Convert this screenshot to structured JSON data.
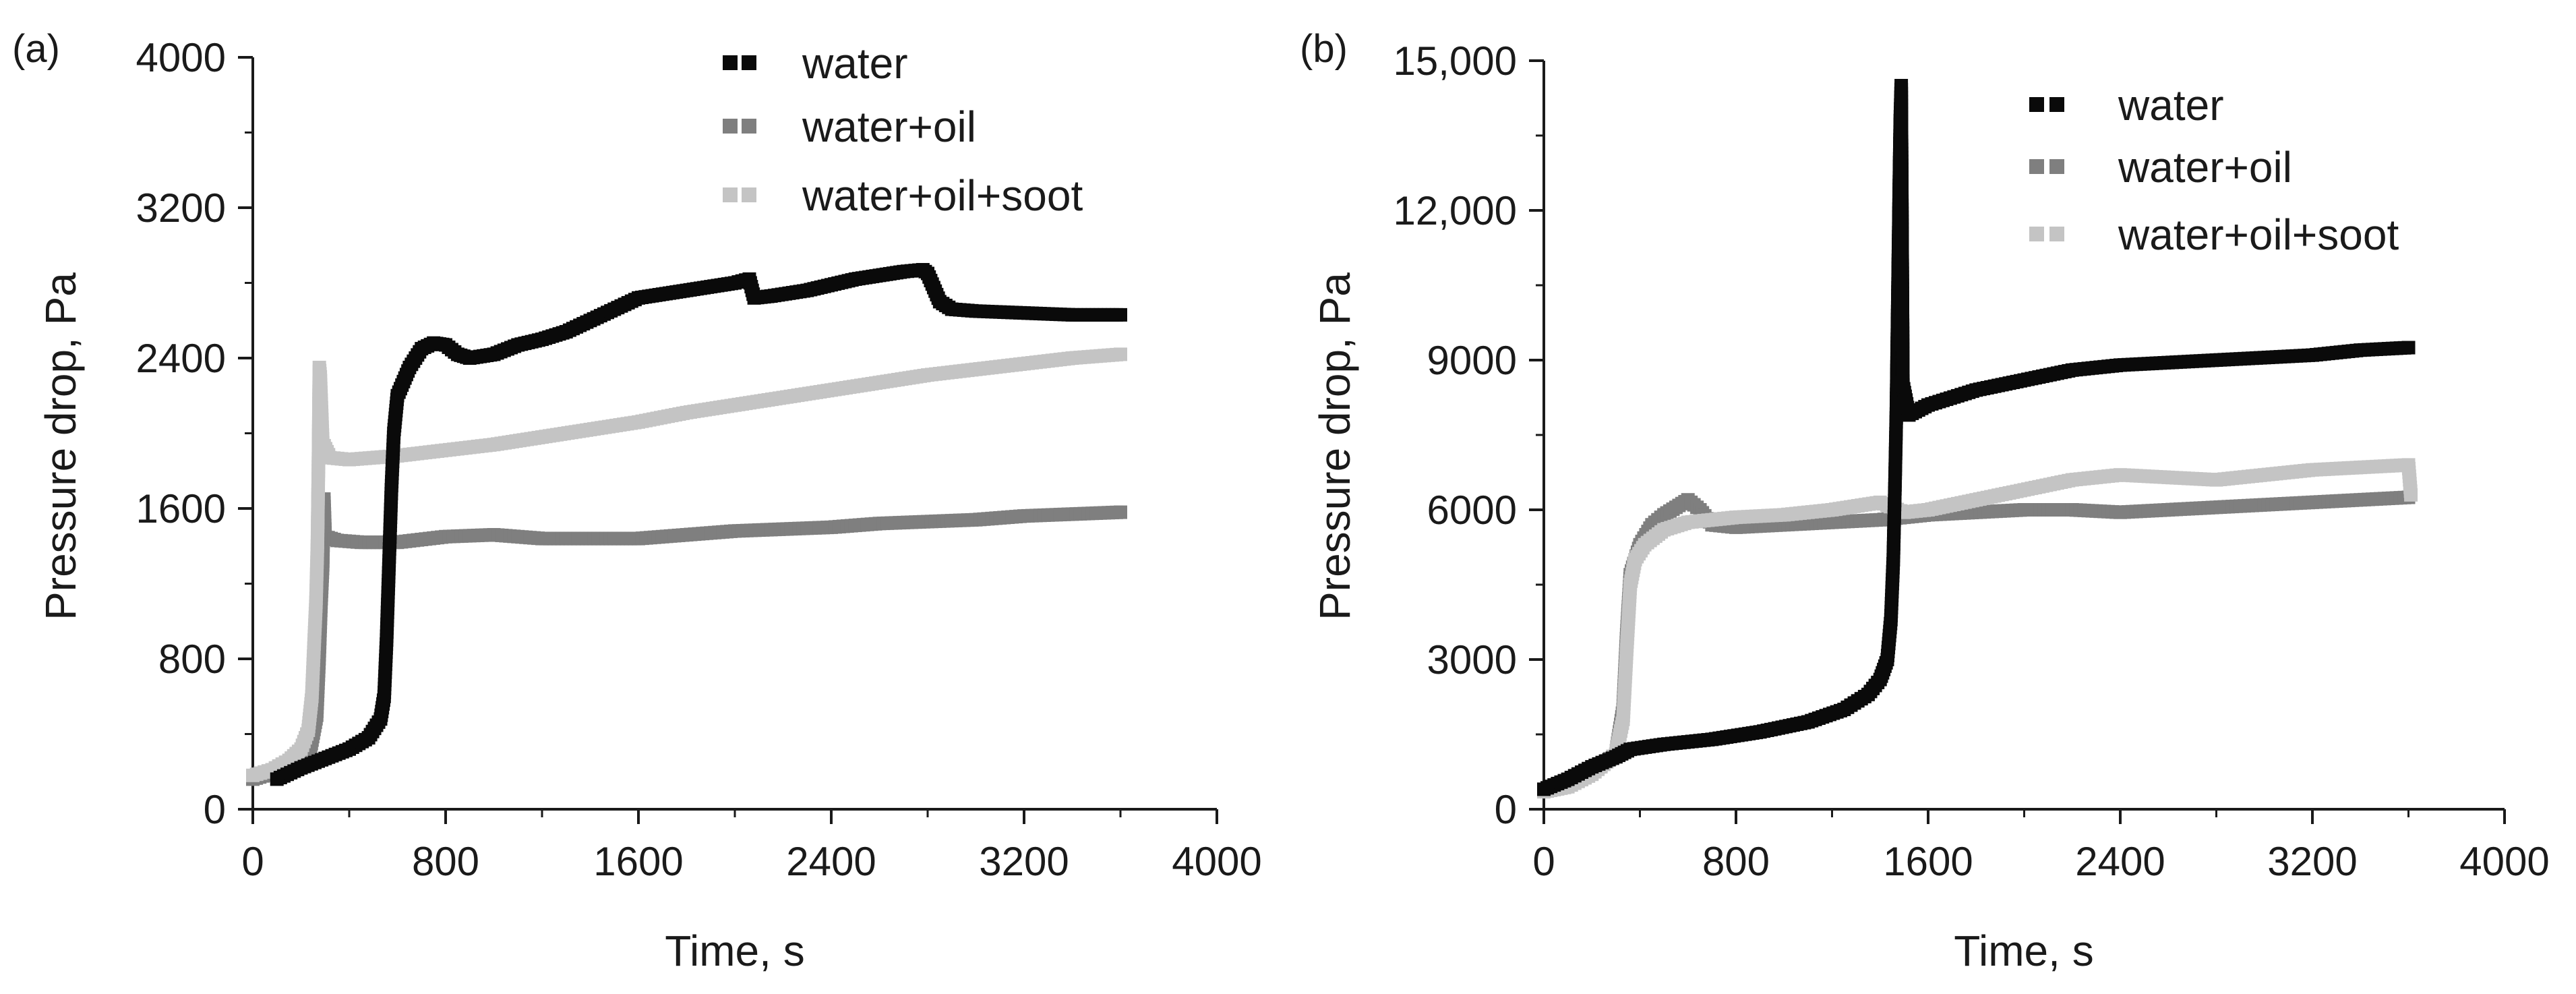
{
  "figure_colors": {
    "water": "#0a0a0a",
    "water+oil": "#7f7f7f",
    "water+oil+soot": "#c4c4c4",
    "axis": "#1a1a1a"
  },
  "chart_data": [
    {
      "type": "scatter",
      "panel_label": "(a)",
      "title": "",
      "xlabel": "Time, s",
      "ylabel": "Pressure drop, Pa",
      "xlim": [
        0,
        4000
      ],
      "ylim": [
        0,
        4000
      ],
      "xticks": [
        0,
        800,
        1600,
        2400,
        3200,
        4000
      ],
      "xtick_labels": [
        "0",
        "800",
        "1600",
        "2400",
        "3200",
        "4000"
      ],
      "yticks": [
        0,
        800,
        1600,
        2400,
        3200,
        4000
      ],
      "ytick_labels": [
        "0",
        "800",
        "1600",
        "2400",
        "3200",
        "4000"
      ],
      "legend_position": "top-right",
      "grid": false,
      "series": [
        {
          "name": "water",
          "color": "#0a0a0a",
          "points": [
            [
              100,
              160
            ],
            [
              200,
              220
            ],
            [
              300,
              270
            ],
            [
              400,
              320
            ],
            [
              480,
              380
            ],
            [
              530,
              480
            ],
            [
              545,
              600
            ],
            [
              555,
              900
            ],
            [
              565,
              1300
            ],
            [
              575,
              1700
            ],
            [
              585,
              2000
            ],
            [
              600,
              2200
            ],
            [
              650,
              2350
            ],
            [
              700,
              2450
            ],
            [
              750,
              2480
            ],
            [
              800,
              2470
            ],
            [
              850,
              2420
            ],
            [
              900,
              2400
            ],
            [
              1000,
              2420
            ],
            [
              1100,
              2470
            ],
            [
              1200,
              2500
            ],
            [
              1300,
              2540
            ],
            [
              1400,
              2600
            ],
            [
              1500,
              2660
            ],
            [
              1600,
              2720
            ],
            [
              1700,
              2740
            ],
            [
              1800,
              2760
            ],
            [
              1900,
              2780
            ],
            [
              2000,
              2800
            ],
            [
              2060,
              2820
            ],
            [
              2080,
              2720
            ],
            [
              2150,
              2730
            ],
            [
              2300,
              2760
            ],
            [
              2400,
              2790
            ],
            [
              2500,
              2820
            ],
            [
              2600,
              2840
            ],
            [
              2700,
              2860
            ],
            [
              2780,
              2870
            ],
            [
              2800,
              2850
            ],
            [
              2850,
              2700
            ],
            [
              2900,
              2660
            ],
            [
              3000,
              2650
            ],
            [
              3200,
              2640
            ],
            [
              3400,
              2630
            ],
            [
              3600,
              2630
            ]
          ]
        },
        {
          "name": "water+oil",
          "color": "#7f7f7f",
          "points": [
            [
              0,
              160
            ],
            [
              100,
              200
            ],
            [
              200,
              250
            ],
            [
              240,
              330
            ],
            [
              265,
              500
            ],
            [
              275,
              800
            ],
            [
              283,
              1100
            ],
            [
              290,
              1300
            ],
            [
              295,
              1650
            ],
            [
              300,
              1450
            ],
            [
              350,
              1430
            ],
            [
              450,
              1420
            ],
            [
              600,
              1420
            ],
            [
              800,
              1450
            ],
            [
              1000,
              1460
            ],
            [
              1200,
              1440
            ],
            [
              1400,
              1440
            ],
            [
              1600,
              1440
            ],
            [
              1800,
              1460
            ],
            [
              2000,
              1480
            ],
            [
              2200,
              1490
            ],
            [
              2400,
              1500
            ],
            [
              2600,
              1520
            ],
            [
              2800,
              1530
            ],
            [
              3000,
              1540
            ],
            [
              3200,
              1560
            ],
            [
              3400,
              1570
            ],
            [
              3600,
              1580
            ]
          ]
        },
        {
          "name": "water+oil+soot",
          "color": "#c4c4c4",
          "points": [
            [
              0,
              180
            ],
            [
              80,
              210
            ],
            [
              150,
              260
            ],
            [
              200,
              320
            ],
            [
              230,
              420
            ],
            [
              245,
              600
            ],
            [
              255,
              900
            ],
            [
              262,
              1100
            ],
            [
              268,
              1400
            ],
            [
              272,
              1800
            ],
            [
              276,
              2350
            ],
            [
              280,
              2300
            ],
            [
              290,
              1950
            ],
            [
              320,
              1870
            ],
            [
              400,
              1860
            ],
            [
              600,
              1880
            ],
            [
              800,
              1910
            ],
            [
              1000,
              1940
            ],
            [
              1200,
              1980
            ],
            [
              1400,
              2020
            ],
            [
              1600,
              2060
            ],
            [
              1800,
              2110
            ],
            [
              2000,
              2150
            ],
            [
              2200,
              2190
            ],
            [
              2400,
              2230
            ],
            [
              2600,
              2270
            ],
            [
              2800,
              2310
            ],
            [
              3000,
              2340
            ],
            [
              3200,
              2370
            ],
            [
              3400,
              2400
            ],
            [
              3600,
              2420
            ]
          ]
        }
      ]
    },
    {
      "type": "scatter",
      "panel_label": "(b)",
      "title": "",
      "xlabel": "Time, s",
      "ylabel": "Pressure drop, Pa",
      "xlim": [
        0,
        4000
      ],
      "ylim": [
        0,
        15000
      ],
      "xticks": [
        0,
        800,
        1600,
        2400,
        3200,
        4000
      ],
      "xtick_labels": [
        "0",
        "800",
        "1600",
        "2400",
        "3200",
        "4000"
      ],
      "yticks": [
        0,
        3000,
        6000,
        9000,
        12000,
        15000
      ],
      "ytick_labels": [
        "0",
        "3000",
        "6000",
        "9000",
        "12,000",
        "15,000"
      ],
      "legend_position": "top-right",
      "grid": false,
      "series": [
        {
          "name": "water",
          "color": "#0a0a0a",
          "points": [
            [
              0,
              400
            ],
            [
              100,
              600
            ],
            [
              200,
              850
            ],
            [
              300,
              1050
            ],
            [
              360,
              1200
            ],
            [
              500,
              1300
            ],
            [
              700,
              1400
            ],
            [
              900,
              1550
            ],
            [
              1100,
              1750
            ],
            [
              1250,
              2000
            ],
            [
              1350,
              2300
            ],
            [
              1400,
              2600
            ],
            [
              1430,
              3000
            ],
            [
              1445,
              3800
            ],
            [
              1455,
              5000
            ],
            [
              1462,
              6500
            ],
            [
              1468,
              8000
            ],
            [
              1472,
              9500
            ],
            [
              1476,
              11000
            ],
            [
              1480,
              12500
            ],
            [
              1484,
              13800
            ],
            [
              1488,
              14500
            ],
            [
              1495,
              8500
            ],
            [
              1520,
              7900
            ],
            [
              1600,
              8100
            ],
            [
              1800,
              8400
            ],
            [
              2000,
              8600
            ],
            [
              2200,
              8800
            ],
            [
              2400,
              8900
            ],
            [
              2600,
              8950
            ],
            [
              2800,
              9000
            ],
            [
              3000,
              9050
            ],
            [
              3200,
              9100
            ],
            [
              3400,
              9200
            ],
            [
              3600,
              9250
            ]
          ]
        },
        {
          "name": "water+oil",
          "color": "#7f7f7f",
          "points": [
            [
              0,
              400
            ],
            [
              100,
              500
            ],
            [
              200,
              750
            ],
            [
              300,
              1100
            ],
            [
              330,
              2000
            ],
            [
              345,
              3500
            ],
            [
              360,
              4700
            ],
            [
              400,
              5300
            ],
            [
              450,
              5700
            ],
            [
              500,
              5900
            ],
            [
              550,
              6050
            ],
            [
              600,
              6200
            ],
            [
              650,
              6000
            ],
            [
              700,
              5700
            ],
            [
              800,
              5650
            ],
            [
              1000,
              5700
            ],
            [
              1200,
              5750
            ],
            [
              1400,
              5800
            ],
            [
              1600,
              5900
            ],
            [
              1800,
              5950
            ],
            [
              2000,
              6000
            ],
            [
              2200,
              6000
            ],
            [
              2400,
              5950
            ],
            [
              2600,
              6000
            ],
            [
              2800,
              6050
            ],
            [
              3000,
              6100
            ],
            [
              3200,
              6150
            ],
            [
              3400,
              6200
            ],
            [
              3600,
              6250
            ]
          ]
        },
        {
          "name": "water+oil+soot",
          "color": "#c4c4c4",
          "points": [
            [
              0,
              350
            ],
            [
              100,
              450
            ],
            [
              200,
              700
            ],
            [
              300,
              1100
            ],
            [
              330,
              1800
            ],
            [
              345,
              3200
            ],
            [
              360,
              4500
            ],
            [
              380,
              5000
            ],
            [
              420,
              5300
            ],
            [
              500,
              5600
            ],
            [
              600,
              5750
            ],
            [
              700,
              5800
            ],
            [
              800,
              5850
            ],
            [
              1000,
              5900
            ],
            [
              1200,
              6000
            ],
            [
              1400,
              6150
            ],
            [
              1500,
              5950
            ],
            [
              1600,
              6000
            ],
            [
              1800,
              6200
            ],
            [
              2000,
              6400
            ],
            [
              2200,
              6600
            ],
            [
              2400,
              6700
            ],
            [
              2600,
              6650
            ],
            [
              2800,
              6600
            ],
            [
              3000,
              6700
            ],
            [
              3200,
              6800
            ],
            [
              3400,
              6850
            ],
            [
              3600,
              6900
            ],
            [
              3610,
              6300
            ]
          ]
        }
      ]
    }
  ]
}
